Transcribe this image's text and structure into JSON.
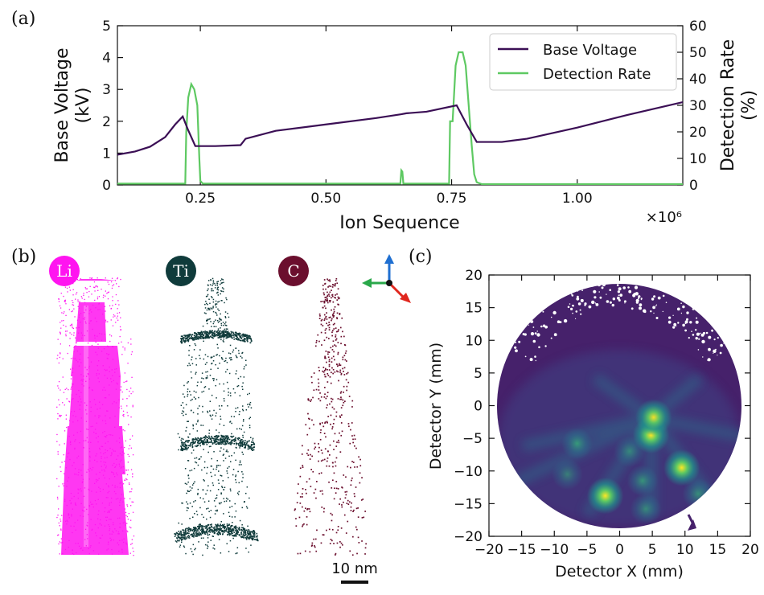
{
  "figure": {
    "panel_labels": [
      "(a)",
      "(b)",
      "(c)"
    ]
  },
  "chart_data": [
    {
      "type": "line",
      "panel": "(a)",
      "xlabel": "Ion Sequence",
      "x_multiplier": "×10⁶",
      "ylabel_left": "Base Voltage",
      "ylabel_left_unit": "(kV)",
      "ylabel_right": "Detection Rate",
      "ylabel_right_unit": "(%)",
      "xlim": [
        0.085,
        1.21
      ],
      "ylim_left": [
        0,
        5
      ],
      "ylim_right": [
        0,
        60
      ],
      "x_ticks": [
        "0.25",
        "0.50",
        "0.75",
        "1.00"
      ],
      "x_tick_values": [
        0.25,
        0.5,
        0.75,
        1.0
      ],
      "y_left_ticks": [
        "0",
        "1",
        "2",
        "3",
        "4",
        "5"
      ],
      "y_right_ticks": [
        "0",
        "10",
        "20",
        "30",
        "40",
        "50",
        "60"
      ],
      "legend": [
        "Base Voltage",
        "Detection Rate"
      ],
      "series": [
        {
          "name": "Base Voltage",
          "axis": "left",
          "color": "#3b0f55",
          "x": [
            0.085,
            0.12,
            0.15,
            0.18,
            0.2,
            0.215,
            0.225,
            0.24,
            0.28,
            0.33,
            0.34,
            0.4,
            0.5,
            0.6,
            0.65,
            0.66,
            0.7,
            0.76,
            0.78,
            0.8,
            0.85,
            0.9,
            1.0,
            1.1,
            1.21
          ],
          "values": [
            0.95,
            1.05,
            1.2,
            1.5,
            1.9,
            2.15,
            1.75,
            1.22,
            1.22,
            1.25,
            1.45,
            1.7,
            1.9,
            2.1,
            2.22,
            2.25,
            2.3,
            2.5,
            1.9,
            1.35,
            1.35,
            1.45,
            1.8,
            2.2,
            2.6
          ]
        },
        {
          "name": "Detection Rate",
          "axis": "right",
          "color": "#5ec962",
          "x": [
            0.085,
            0.22,
            0.222,
            0.226,
            0.232,
            0.238,
            0.244,
            0.248,
            0.25,
            0.255,
            0.648,
            0.65,
            0.652,
            0.654,
            0.656,
            0.745,
            0.747,
            0.752,
            0.758,
            0.764,
            0.772,
            0.778,
            0.784,
            0.79,
            0.795,
            0.8,
            0.81,
            1.21
          ],
          "values": [
            0.5,
            0.5,
            20,
            33,
            38,
            36,
            30,
            10,
            1.5,
            0.5,
            0.5,
            5.5,
            5,
            0.5,
            0.5,
            0.5,
            24,
            24,
            45,
            50,
            50,
            45,
            30,
            15,
            4,
            1,
            0.3,
            0.3
          ]
        }
      ]
    },
    {
      "type": "heatmap",
      "panel": "(c)",
      "xlabel": "Detector X (mm)",
      "ylabel": "Detector Y (mm)",
      "xlim": [
        -20,
        20
      ],
      "ylim": [
        -20,
        20
      ],
      "x_ticks": [
        "−20",
        "−15",
        "−10",
        "−5",
        "0",
        "5",
        "10",
        "15",
        "20"
      ],
      "y_ticks": [
        "20",
        "15",
        "10",
        "5",
        "0",
        "−5",
        "−10",
        "−15",
        "−20"
      ],
      "detector_radius_mm": 19,
      "hotspots": [
        {
          "x": -2.2,
          "y": -13.8,
          "intensity": 1.0
        },
        {
          "x": 4.8,
          "y": -4.5,
          "intensity": 0.85
        },
        {
          "x": 5.2,
          "y": -1.8,
          "intensity": 0.6
        },
        {
          "x": 9.5,
          "y": -9.5,
          "intensity": 0.7
        },
        {
          "x": -6.5,
          "y": -5.8,
          "intensity": 0.5
        },
        {
          "x": 3.5,
          "y": -11.5,
          "intensity": 0.45
        },
        {
          "x": 12.0,
          "y": -13.5,
          "intensity": 0.4
        },
        {
          "x": 4.0,
          "y": -15.8,
          "intensity": 0.35
        },
        {
          "x": -8.0,
          "y": -10.5,
          "intensity": 0.3
        },
        {
          "x": 1.5,
          "y": -7.0,
          "intensity": 0.3
        }
      ],
      "arrow_marker": {
        "x": 10,
        "y": -18
      }
    }
  ],
  "panel_b": {
    "species": [
      {
        "label": "Li",
        "color": "#ff14f0"
      },
      {
        "label": "Ti",
        "color": "#0f3b3b"
      },
      {
        "label": "C",
        "color": "#6b0f2e"
      }
    ],
    "scale_bar": "10 nm",
    "axis_colors": {
      "up": "#1f6fd1",
      "left": "#2aa84a",
      "right": "#e0271e"
    }
  }
}
